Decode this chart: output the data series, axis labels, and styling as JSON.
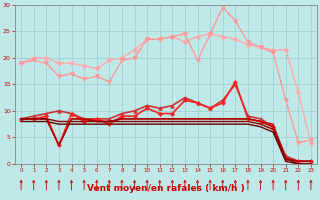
{
  "x": [
    0,
    1,
    2,
    3,
    4,
    5,
    6,
    7,
    8,
    9,
    10,
    11,
    12,
    13,
    14,
    15,
    16,
    17,
    18,
    19,
    20,
    21,
    22,
    23
  ],
  "series": [
    {
      "color": "#ffaaaa",
      "linewidth": 1.0,
      "marker": "D",
      "markersize": 2.5,
      "y": [
        19.0,
        20.0,
        20.0,
        19.0,
        19.0,
        18.5,
        18.0,
        19.5,
        20.0,
        21.5,
        23.5,
        23.5,
        24.0,
        23.0,
        24.0,
        24.5,
        24.0,
        23.5,
        22.5,
        22.0,
        21.5,
        21.5,
        13.5,
        4.0
      ]
    },
    {
      "color": "#ff9999",
      "linewidth": 1.0,
      "marker": "v",
      "markersize": 3,
      "y": [
        19.0,
        19.5,
        19.0,
        16.5,
        17.0,
        16.0,
        16.5,
        15.5,
        19.5,
        20.0,
        23.5,
        23.5,
        24.0,
        24.5,
        19.5,
        24.5,
        29.5,
        27.0,
        23.0,
        22.0,
        21.0,
        12.0,
        4.0,
        4.5
      ]
    },
    {
      "color": "#cc3333",
      "linewidth": 1.2,
      "marker": "^",
      "markersize": 2.5,
      "y": [
        8.5,
        9.0,
        9.5,
        10.0,
        9.5,
        8.5,
        8.5,
        8.5,
        9.5,
        10.0,
        11.0,
        10.5,
        11.0,
        12.5,
        11.5,
        10.5,
        12.0,
        15.0,
        9.0,
        8.5,
        7.0,
        1.5,
        0.5,
        0.5
      ]
    },
    {
      "color": "#ff2222",
      "linewidth": 1.2,
      "marker": "D",
      "markersize": 2,
      "y": [
        8.5,
        8.5,
        9.0,
        3.5,
        9.5,
        8.0,
        8.5,
        7.5,
        9.0,
        9.0,
        10.5,
        9.5,
        9.5,
        12.0,
        11.5,
        10.5,
        11.5,
        15.5,
        8.5,
        8.0,
        7.0,
        1.0,
        0.5,
        0.5
      ]
    },
    {
      "color": "#cc0000",
      "linewidth": 1.0,
      "marker": null,
      "markersize": 0,
      "y": [
        8.5,
        8.5,
        8.5,
        3.5,
        8.5,
        8.5,
        8.0,
        8.0,
        8.5,
        8.5,
        8.5,
        8.5,
        8.5,
        8.5,
        8.5,
        8.5,
        8.5,
        8.5,
        8.5,
        8.0,
        7.5,
        1.0,
        0.5,
        0.5
      ]
    },
    {
      "color": "#aa0000",
      "linewidth": 1.0,
      "marker": null,
      "markersize": 0,
      "y": [
        8.5,
        8.5,
        8.5,
        3.5,
        8.5,
        8.5,
        8.0,
        8.0,
        8.5,
        8.5,
        8.5,
        8.5,
        8.5,
        8.5,
        8.5,
        8.5,
        8.5,
        8.5,
        8.5,
        8.0,
        7.0,
        1.0,
        0.5,
        0.5
      ]
    },
    {
      "color": "#880000",
      "linewidth": 1.0,
      "marker": null,
      "markersize": 0,
      "y": [
        8.5,
        8.5,
        8.5,
        8.0,
        8.0,
        8.0,
        8.0,
        8.0,
        8.0,
        8.0,
        8.0,
        8.0,
        8.0,
        8.0,
        8.0,
        8.0,
        8.0,
        8.0,
        8.0,
        7.5,
        6.5,
        1.0,
        0.0,
        0.0
      ]
    },
    {
      "color": "#660000",
      "linewidth": 1.0,
      "marker": null,
      "markersize": 0,
      "y": [
        8.0,
        8.0,
        8.0,
        7.5,
        7.5,
        7.5,
        7.5,
        7.5,
        7.5,
        7.5,
        7.5,
        7.5,
        7.5,
        7.5,
        7.5,
        7.5,
        7.5,
        7.5,
        7.5,
        7.0,
        6.0,
        0.5,
        0.0,
        0.0
      ]
    }
  ],
  "xlabel": "Vent moyen/en rafales ( km/h )",
  "xlabel_color": "#cc0000",
  "xlabel_fontsize": 6.5,
  "background_color": "#bfe8e8",
  "grid_color": "#99cccc",
  "axis_color": "#888888",
  "tick_color": "#cc0000",
  "ylim": [
    0,
    30
  ],
  "xlim": [
    -0.5,
    23.5
  ],
  "yticks": [
    0,
    5,
    10,
    15,
    20,
    25,
    30
  ],
  "xticks": [
    0,
    1,
    2,
    3,
    4,
    5,
    6,
    7,
    8,
    9,
    10,
    11,
    12,
    13,
    14,
    15,
    16,
    17,
    18,
    19,
    20,
    21,
    22,
    23
  ],
  "arrow_color": "#cc0000"
}
